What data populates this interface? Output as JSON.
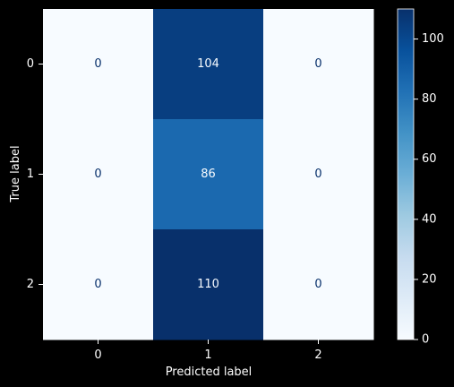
{
  "chart_data": {
    "type": "heatmap",
    "title": "",
    "xlabel": "Predicted label",
    "ylabel": "True label",
    "x_categories": [
      "0",
      "1",
      "2"
    ],
    "y_categories": [
      "0",
      "1",
      "2"
    ],
    "values": [
      [
        0,
        104,
        0
      ],
      [
        0,
        86,
        0
      ],
      [
        0,
        110,
        0
      ]
    ],
    "colormap": "Blues",
    "colorbar": {
      "min": 0,
      "max": 110,
      "ticks": [
        "0",
        "20",
        "40",
        "60",
        "80",
        "100"
      ]
    },
    "grid": false,
    "legend": "colorbar-right"
  },
  "colors": {
    "background": "#000000",
    "text": "#ffffff",
    "low": "#f7fbff",
    "high": "#08306b"
  }
}
